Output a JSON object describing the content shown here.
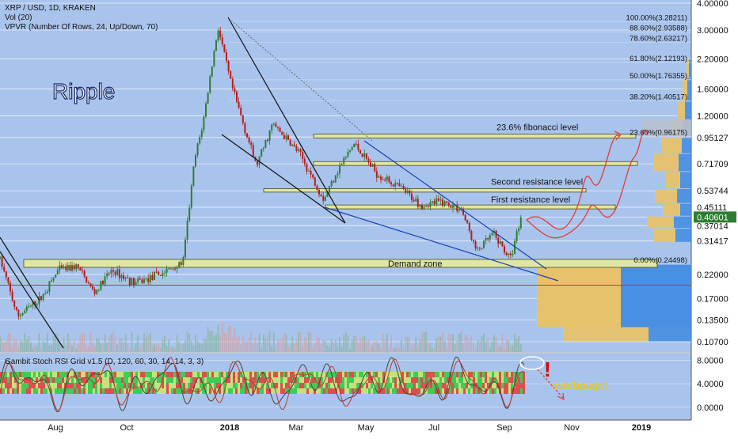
{
  "header": {
    "symbol_line": "XRP / USD, 1D, KRAKEN",
    "indicator1": "Vol (20)",
    "indicator2": "VPVR (Number Of Rows, 24, Up/Down, 70)"
  },
  "title_watermark": "Ripple",
  "osc_header": "Gambit Stoch RSI Grid v1.5 (D, 120, 60, 30, 14, 14, 3, 3)",
  "osc_annotation": "overbought",
  "osc_exclamation": "!",
  "colors": {
    "panel_bg": "#a9c4ec",
    "up_candle": "#2e7d32",
    "down_candle": "#b71c1c",
    "zone_fill": "#dfe7a3",
    "zone_stroke": "#4a4a1a",
    "vpvr_up": "#4a90e2",
    "vpvr_down": "#e6c36a",
    "price_badge": "#2e7d32",
    "curve_red": "#e53935",
    "trend_black": "#111111",
    "trend_blue": "#1a3fb5"
  },
  "chart_data": [
    {
      "type": "candlestick",
      "title": "XRP / USD, 1D, KRAKEN",
      "scale": "log",
      "ylim": [
        0.1,
        4.0
      ],
      "x_axis_labels": [
        "Aug",
        "Oct",
        "2018",
        "Mar",
        "May",
        "Jul",
        "Sep",
        "Nov",
        "2019"
      ],
      "y_axis_labels": [
        "4.00000",
        "3.00000",
        "2.20000",
        "1.60000",
        "1.20000",
        "0.95127",
        "0.71709",
        "0.53744",
        "0.45111",
        "0.40601",
        "0.37014",
        "0.31417",
        "0.22000",
        "0.17000",
        "0.13500",
        "0.10700"
      ],
      "current_price": "0.40601",
      "series": [
        {
          "points": [
            {
              "x": "2017-07-01",
              "y": 0.26
            },
            {
              "x": "2017-07-16",
              "y": 0.14
            },
            {
              "x": "2017-08-05",
              "y": 0.17
            },
            {
              "x": "2017-08-20",
              "y": 0.23
            },
            {
              "x": "2017-09-05",
              "y": 0.24
            },
            {
              "x": "2017-09-20",
              "y": 0.18
            },
            {
              "x": "2017-10-05",
              "y": 0.23
            },
            {
              "x": "2017-10-25",
              "y": 0.2
            },
            {
              "x": "2017-11-15",
              "y": 0.22
            },
            {
              "x": "2017-12-05",
              "y": 0.25
            },
            {
              "x": "2017-12-15",
              "y": 0.75
            },
            {
              "x": "2017-12-22",
              "y": 1.1
            },
            {
              "x": "2018-01-04",
              "y": 3.1
            },
            {
              "x": "2018-01-15",
              "y": 1.7
            },
            {
              "x": "2018-02-06",
              "y": 0.7
            },
            {
              "x": "2018-02-20",
              "y": 1.1
            },
            {
              "x": "2018-03-15",
              "y": 0.8
            },
            {
              "x": "2018-04-05",
              "y": 0.49
            },
            {
              "x": "2018-04-15",
              "y": 0.65
            },
            {
              "x": "2018-05-01",
              "y": 0.89
            },
            {
              "x": "2018-05-20",
              "y": 0.65
            },
            {
              "x": "2018-06-10",
              "y": 0.55
            },
            {
              "x": "2018-06-28",
              "y": 0.46
            },
            {
              "x": "2018-07-15",
              "y": 0.48
            },
            {
              "x": "2018-08-01",
              "y": 0.44
            },
            {
              "x": "2018-08-14",
              "y": 0.28
            },
            {
              "x": "2018-08-28",
              "y": 0.34
            },
            {
              "x": "2018-09-12",
              "y": 0.26
            },
            {
              "x": "2018-09-21",
              "y": 0.41
            }
          ]
        }
      ],
      "fibonacci_levels": [
        {
          "label": "100.00%(3.28211)",
          "value": 3.28211
        },
        {
          "label": "88.60%(2.93588)",
          "value": 2.93588
        },
        {
          "label": "78.60%(2.63217)",
          "value": 2.63217
        },
        {
          "label": "61.80%(2.12193)",
          "value": 2.12193
        },
        {
          "label": "50.00%(1.76355)",
          "value": 1.76355
        },
        {
          "label": "38.20%(1.40517)",
          "value": 1.40517
        },
        {
          "label": "23.60%(0.96175)",
          "value": 0.96175
        },
        {
          "label": "0.00%(0.24498)",
          "value": 0.24498
        }
      ],
      "annotations": [
        {
          "text": "23.6% fibonacci level",
          "value": 0.96175
        },
        {
          "text": "Second resistance level",
          "value": 0.54
        },
        {
          "text": "First resistance level",
          "value": 0.45
        },
        {
          "text": "Demand zone",
          "value": 0.245
        }
      ]
    },
    {
      "type": "line",
      "title": "Gambit Stoch RSI Grid v1.5 (D, 120, 60, 30, 14, 14, 3, 3)",
      "ylim": [
        -1.5,
        9
      ],
      "y_axis_labels": [
        "8.0000",
        "4.0000",
        "0.0000"
      ]
    }
  ]
}
